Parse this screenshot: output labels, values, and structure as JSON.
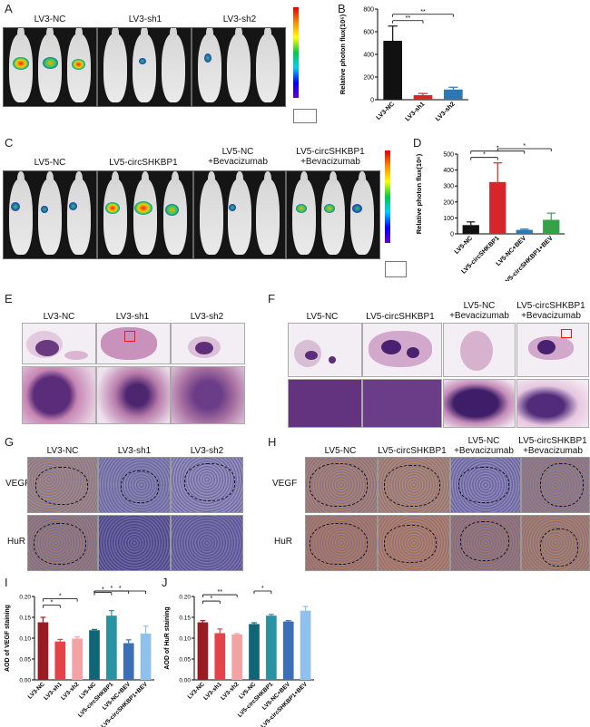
{
  "panels": [
    "A",
    "B",
    "C",
    "D",
    "E",
    "F",
    "G",
    "H",
    "I",
    "J"
  ],
  "A": {
    "groups": [
      "LV3-NC",
      "LV3-sh1",
      "LV3-sh2"
    ]
  },
  "C": {
    "groups": [
      "LV5-NC",
      "LV5-circSHKBP1",
      "LV5-NC\n+Bevacizumab",
      "LV5-circSHKBP1\n+Bevacizumab"
    ]
  },
  "E": {
    "groups": [
      "LV3-NC",
      "LV3-sh1",
      "LV3-sh2"
    ]
  },
  "F": {
    "groups": [
      "LV5-NC",
      "LV5-circSHKBP1",
      "LV5-NC\n+Bevacizumab",
      "LV5-circSHKBP1\n+Bevacizumab"
    ]
  },
  "G": {
    "groups": [
      "LV3-NC",
      "LV3-sh1",
      "LV3-sh2"
    ],
    "rows": [
      "VEGF",
      "HuR"
    ]
  },
  "H": {
    "groups": [
      "LV5-NC",
      "LV5-circSHKBP1",
      "LV5-NC\n+Bevacizumab",
      "LV5-circSHKBP1\n+Bevacizumab"
    ],
    "rows": [
      "VEGF",
      "HuR"
    ]
  },
  "chart_data": [
    {
      "panel": "B",
      "type": "bar",
      "categories": [
        "LV3-NC",
        "LV3-sh1",
        "LV3-sh2"
      ],
      "values": [
        520,
        40,
        90
      ],
      "errors": [
        130,
        15,
        20
      ],
      "colors": [
        "#111111",
        "#d7262b",
        "#2b78b5"
      ],
      "ylabel": "Relative photon flux(10⁵)",
      "ylim": [
        0,
        800
      ],
      "yticks": [
        0,
        200,
        400,
        600,
        800
      ],
      "significance": [
        {
          "from": 0,
          "to": 1,
          "label": "**"
        },
        {
          "from": 0,
          "to": 2,
          "label": "**"
        }
      ]
    },
    {
      "panel": "D",
      "type": "bar",
      "categories": [
        "LV5-NC",
        "LV5-circSHKBP1",
        "LV5-NC+BEV",
        "LV5-circSHKBP1+BEV"
      ],
      "values": [
        55,
        325,
        25,
        88
      ],
      "errors": [
        20,
        120,
        5,
        42
      ],
      "colors": [
        "#111111",
        "#d7262b",
        "#2b78b5",
        "#35a24a"
      ],
      "ylabel": "Relative photon flux(10⁶)",
      "ylim": [
        0,
        500
      ],
      "yticks": [
        0,
        100,
        200,
        300,
        400,
        500
      ],
      "significance": [
        {
          "from": 0,
          "to": 1,
          "label": "*"
        },
        {
          "from": 0,
          "to": 2,
          "label": "*"
        },
        {
          "from": 1,
          "to": 3,
          "label": "*"
        }
      ]
    },
    {
      "panel": "I",
      "type": "bar",
      "categories": [
        "LV3-NC",
        "LV3-sh1",
        "LV3-sh2",
        "LV5-NC",
        "LV5-circSHKBP1",
        "LV5-NC+BEV",
        "LV5-circSHKBP1+BEV"
      ],
      "values": [
        0.138,
        0.092,
        0.099,
        0.119,
        0.154,
        0.088,
        0.111
      ],
      "errors": [
        0.012,
        0.005,
        0.004,
        0.002,
        0.012,
        0.008,
        0.018
      ],
      "colors": [
        "#9b1b22",
        "#e4434a",
        "#f4a3a5",
        "#0f6677",
        "#2a93a1",
        "#3c6fb6",
        "#8fc1ec"
      ],
      "ylabel": "AOD of VEGF staining",
      "ylim": [
        0,
        0.2
      ],
      "yticks": [
        "0.00",
        "0.05",
        "0.10",
        "0.15",
        "0.20"
      ],
      "significance": [
        {
          "from": 0,
          "to": 1,
          "label": "*"
        },
        {
          "from": 0,
          "to": 2,
          "label": "*"
        },
        {
          "from": 3,
          "to": 4,
          "label": "*"
        },
        {
          "from": 3,
          "to": 5,
          "label": "*"
        },
        {
          "from": 3,
          "to": 6,
          "label": "*"
        }
      ]
    },
    {
      "panel": "J",
      "type": "bar",
      "categories": [
        "LV3-NC",
        "LV3-sh1",
        "LV3-sh2",
        "LV5-NC",
        "LV5-circSHKBP1",
        "LV5-NC+BEV",
        "LV5-circSHKBP1+BEV"
      ],
      "values": [
        0.138,
        0.112,
        0.109,
        0.134,
        0.154,
        0.14,
        0.166
      ],
      "errors": [
        0.004,
        0.01,
        0.002,
        0.003,
        0.003,
        0.002,
        0.01
      ],
      "colors": [
        "#9b1b22",
        "#e4434a",
        "#f4a3a5",
        "#0f6677",
        "#2a93a1",
        "#3c6fb6",
        "#8fc1ec"
      ],
      "ylabel": "AOD of HuR staining",
      "ylim": [
        0,
        0.2
      ],
      "yticks": [
        "0.00",
        "0.05",
        "0.10",
        "0.15",
        "0.20"
      ],
      "significance": [
        {
          "from": 0,
          "to": 1,
          "label": "*"
        },
        {
          "from": 0,
          "to": 2,
          "label": "**"
        },
        {
          "from": 3,
          "to": 4,
          "label": "*"
        }
      ]
    }
  ]
}
